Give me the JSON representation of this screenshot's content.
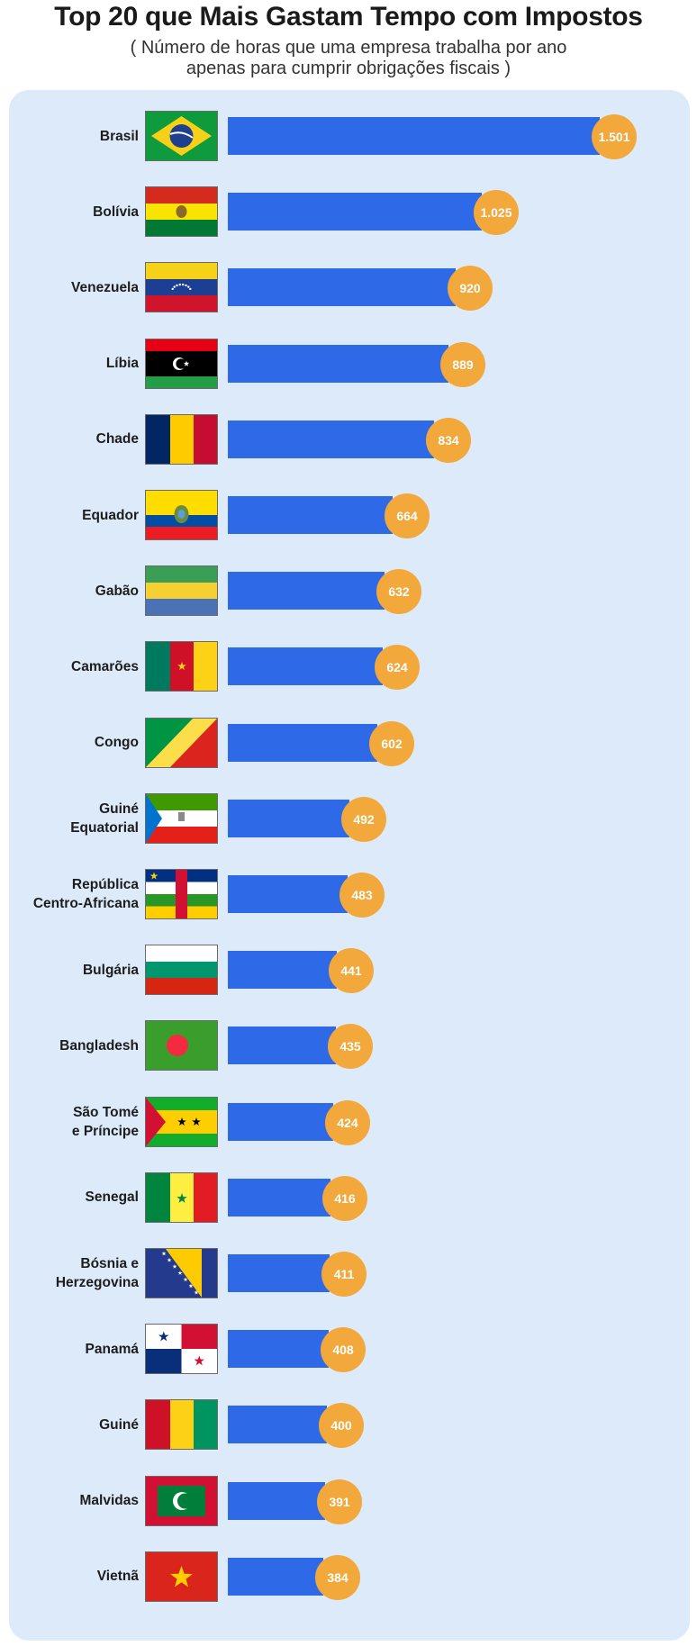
{
  "title": "Top 20 que Mais Gastam Tempo com Impostos",
  "subtitle_line1": "( Número de horas que uma empresa trabalha por ano",
  "subtitle_line2": "apenas para cumprir obrigações fiscais )",
  "chart_data": {
    "type": "bar",
    "orientation": "horizontal",
    "title": "Top 20 que Mais Gastam Tempo com Impostos",
    "subtitle": "( Número de horas que uma empresa trabalha por ano apenas para cumprir obrigações fiscais )",
    "categories": [
      "Brasil",
      "Bolívia",
      "Venezuela",
      "Líbia",
      "Chade",
      "Equador",
      "Gabão",
      "Camarões",
      "Congo",
      "Guiné Equatorial",
      "República Centro-Africana",
      "Bulgária",
      "Bangladesh",
      "São Tomé e Príncipe",
      "Senegal",
      "Bósnia e Herzegovina",
      "Panamá",
      "Guiné",
      "Malvidas",
      "Vietnã"
    ],
    "values": [
      1501,
      1025,
      920,
      889,
      834,
      664,
      632,
      624,
      602,
      492,
      483,
      441,
      435,
      424,
      416,
      411,
      408,
      400,
      391,
      384
    ],
    "value_labels": [
      "1.501",
      "1.025",
      "920",
      "889",
      "834",
      "664",
      "632",
      "624",
      "602",
      "492",
      "483",
      "441",
      "435",
      "424",
      "416",
      "411",
      "408",
      "400",
      "391",
      "384"
    ],
    "bar_color": "#2e6ae8",
    "label_badge_color": "#f2a83a",
    "background_color": "#ddeafa",
    "grid": false,
    "legend": "none"
  },
  "rows": [
    {
      "label": [
        "Brasil"
      ],
      "flag": "brazil-flag-icon"
    },
    {
      "label": [
        "Bolívia"
      ],
      "flag": "bolivia-flag-icon"
    },
    {
      "label": [
        "Venezuela"
      ],
      "flag": "venezuela-flag-icon"
    },
    {
      "label": [
        "Líbia"
      ],
      "flag": "libya-flag-icon"
    },
    {
      "label": [
        "Chade"
      ],
      "flag": "chad-flag-icon"
    },
    {
      "label": [
        "Equador"
      ],
      "flag": "ecuador-flag-icon"
    },
    {
      "label": [
        "Gabão"
      ],
      "flag": "gabon-flag-icon"
    },
    {
      "label": [
        "Camarões"
      ],
      "flag": "cameroon-flag-icon"
    },
    {
      "label": [
        "Congo"
      ],
      "flag": "congo-flag-icon"
    },
    {
      "label": [
        "Guiné",
        "Equatorial"
      ],
      "flag": "equatorial-guinea-flag-icon"
    },
    {
      "label": [
        "República",
        "Centro-Africana"
      ],
      "flag": "central-african-republic-flag-icon"
    },
    {
      "label": [
        "Bulgária"
      ],
      "flag": "bulgaria-flag-icon"
    },
    {
      "label": [
        "Bangladesh"
      ],
      "flag": "bangladesh-flag-icon"
    },
    {
      "label": [
        "São Tomé",
        "e Príncipe"
      ],
      "flag": "sao-tome-flag-icon"
    },
    {
      "label": [
        "Senegal"
      ],
      "flag": "senegal-flag-icon"
    },
    {
      "label": [
        "Bósnia e",
        "Herzegovina"
      ],
      "flag": "bosnia-flag-icon"
    },
    {
      "label": [
        "Panamá"
      ],
      "flag": "panama-flag-icon"
    },
    {
      "label": [
        "Guiné"
      ],
      "flag": "guinea-flag-icon"
    },
    {
      "label": [
        "Malvidas"
      ],
      "flag": "maldives-flag-icon"
    },
    {
      "label": [
        "Vietnã"
      ],
      "flag": "vietnam-flag-icon"
    }
  ]
}
